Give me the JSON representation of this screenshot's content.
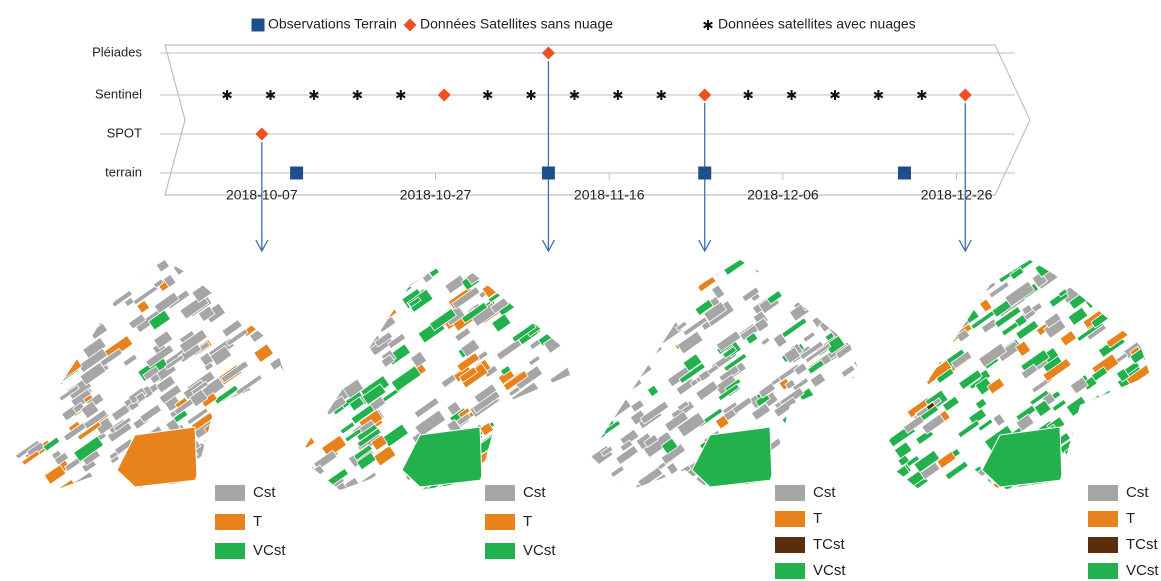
{
  "chart_data": {
    "type": "timeline",
    "rows": [
      "Pléiades",
      "Sentinel",
      "SPOT",
      "terrain"
    ],
    "xlim": [
      "2018-09-27",
      "2018-12-31"
    ],
    "xticks": [
      "2018-10-07",
      "2018-10-27",
      "2018-11-16",
      "2018-12-06",
      "2018-12-26"
    ],
    "series": [
      {
        "name": "Observations Terrain",
        "color": "#1f4e8c",
        "marker": "square",
        "x": [
          "2018-10-11",
          "2018-11-09",
          "2018-11-27",
          "2018-12-20"
        ],
        "y": [
          "terrain",
          "terrain",
          "terrain",
          "terrain"
        ]
      },
      {
        "name": "Données Satellites sans nuage",
        "color": "#f04e23",
        "marker": "diamond",
        "x": [
          "2018-11-09",
          "2018-10-28",
          "2018-11-27",
          "2018-12-27",
          "2018-10-07"
        ],
        "y": [
          "Pléiades",
          "Sentinel",
          "Sentinel",
          "Sentinel",
          "SPOT"
        ]
      },
      {
        "name": "Données satellites avec nuages",
        "color": "#111111",
        "marker": "asterisk",
        "x": [
          "2018-10-03",
          "2018-10-08",
          "2018-10-13",
          "2018-10-18",
          "2018-10-23",
          "2018-11-02",
          "2018-11-07",
          "2018-11-12",
          "2018-11-17",
          "2018-11-22",
          "2018-12-02",
          "2018-12-07",
          "2018-12-12",
          "2018-12-17",
          "2018-12-22"
        ],
        "y": [
          "Sentinel",
          "Sentinel",
          "Sentinel",
          "Sentinel",
          "Sentinel",
          "Sentinel",
          "Sentinel",
          "Sentinel",
          "Sentinel",
          "Sentinel",
          "Sentinel",
          "Sentinel",
          "Sentinel",
          "Sentinel",
          "Sentinel"
        ]
      }
    ],
    "arrows": [
      "2018-10-07",
      "2018-11-09",
      "2018-11-27",
      "2018-12-27"
    ],
    "maps": [
      {
        "legend": [
          {
            "label": "Cst",
            "color": "#a6a6a6"
          },
          {
            "label": "T",
            "color": "#e8821c"
          },
          {
            "label": "VCst",
            "color": "#22b14c"
          }
        ]
      },
      {
        "legend": [
          {
            "label": "Cst",
            "color": "#a6a6a6"
          },
          {
            "label": "T",
            "color": "#e8821c"
          },
          {
            "label": "VCst",
            "color": "#22b14c"
          }
        ]
      },
      {
        "legend": [
          {
            "label": "Cst",
            "color": "#a6a6a6"
          },
          {
            "label": "T",
            "color": "#e8821c"
          },
          {
            "label": "TCst",
            "color": "#5a2d0c"
          },
          {
            "label": "VCst",
            "color": "#22b14c"
          }
        ]
      },
      {
        "legend": [
          {
            "label": "Cst",
            "color": "#a6a6a6"
          },
          {
            "label": "T",
            "color": "#e8821c"
          },
          {
            "label": "TCst",
            "color": "#5a2d0c"
          },
          {
            "label": "VCst",
            "color": "#22b14c"
          }
        ]
      }
    ]
  }
}
